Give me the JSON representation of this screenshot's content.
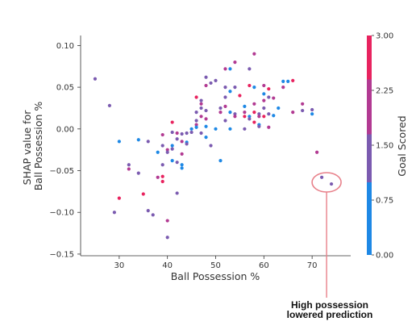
{
  "chart_data": {
    "type": "scatter",
    "xlabel": "Ball Possession %",
    "ylabel_lines": [
      "SHAP value for",
      "Ball Possession %"
    ],
    "xlim": [
      22,
      78
    ],
    "ylim": [
      -0.152,
      0.112
    ],
    "xticks": [
      "30",
      "40",
      "50",
      "60",
      "70"
    ],
    "xtick_values": [
      30,
      40,
      50,
      60,
      70
    ],
    "yticks": [
      "0.10",
      "0.05",
      "0.00",
      "−0.05",
      "−0.10",
      "−0.15"
    ],
    "ytick_values": [
      0.1,
      0.05,
      0.0,
      -0.05,
      -0.1,
      -0.15
    ],
    "grid": false,
    "colorbar": {
      "label": "Goal Scored",
      "min": 0,
      "max": 3,
      "ticks": [
        "3.00",
        "2.25",
        "1.50",
        "0.75",
        "0.00"
      ],
      "tick_values": [
        3.0,
        2.25,
        1.5,
        0.75,
        0.0
      ],
      "colors": [
        "#1e88e5",
        "#7b5bb0",
        "#b23a92",
        "#e8235f"
      ]
    },
    "annotation": {
      "lines": [
        "High possession",
        "lowered prediction"
      ],
      "circle_center": [
        73,
        -0.064
      ],
      "color": "#e8808a"
    },
    "points": [
      [
        25,
        0.06,
        1
      ],
      [
        28,
        0.028,
        1
      ],
      [
        30,
        -0.015,
        0
      ],
      [
        30,
        -0.083,
        3
      ],
      [
        29,
        -0.1,
        1
      ],
      [
        32,
        -0.043,
        1
      ],
      [
        32,
        -0.048,
        2
      ],
      [
        34,
        -0.013,
        0
      ],
      [
        34,
        -0.053,
        1
      ],
      [
        35,
        -0.078,
        3
      ],
      [
        36,
        -0.015,
        1
      ],
      [
        36,
        -0.098,
        1
      ],
      [
        37,
        -0.103,
        1
      ],
      [
        38,
        -0.028,
        0
      ],
      [
        38,
        -0.058,
        2
      ],
      [
        39,
        -0.02,
        1
      ],
      [
        39,
        -0.043,
        1
      ],
      [
        39,
        -0.057,
        3
      ],
      [
        39,
        -0.063,
        3
      ],
      [
        39,
        -0.007,
        2
      ],
      [
        40,
        -0.025,
        2
      ],
      [
        40,
        -0.028,
        1
      ],
      [
        40,
        -0.11,
        2
      ],
      [
        40,
        -0.13,
        1
      ],
      [
        41,
        -0.004,
        1
      ],
      [
        41,
        -0.02,
        0
      ],
      [
        41,
        -0.024,
        1
      ],
      [
        41,
        -0.038,
        0
      ],
      [
        41,
        0.008,
        3
      ],
      [
        42,
        -0.005,
        2
      ],
      [
        42,
        -0.012,
        1
      ],
      [
        42,
        -0.04,
        1
      ],
      [
        42,
        -0.077,
        1
      ],
      [
        43,
        -0.006,
        1
      ],
      [
        43,
        -0.015,
        2
      ],
      [
        43,
        -0.03,
        2
      ],
      [
        43,
        -0.043,
        0
      ],
      [
        43,
        -0.047,
        0
      ],
      [
        44,
        -0.005,
        1
      ],
      [
        44,
        -0.016,
        0
      ],
      [
        44,
        -0.018,
        1
      ],
      [
        45,
        0.0,
        0
      ],
      [
        45,
        -0.004,
        1
      ],
      [
        46,
        0.005,
        2
      ],
      [
        46,
        0.01,
        1
      ],
      [
        46,
        0.002,
        0
      ],
      [
        46,
        0.02,
        1
      ],
      [
        46,
        0.038,
        3
      ],
      [
        47,
        0.03,
        2
      ],
      [
        47,
        0.025,
        1
      ],
      [
        47,
        0.015,
        2
      ],
      [
        47,
        -0.005,
        1
      ],
      [
        47,
        0.034,
        1
      ],
      [
        48,
        0.003,
        0
      ],
      [
        48,
        0.012,
        2
      ],
      [
        48,
        0.022,
        1
      ],
      [
        48,
        0.052,
        2
      ],
      [
        48,
        0.062,
        1
      ],
      [
        48,
        -0.01,
        0
      ],
      [
        49,
        0.055,
        1
      ],
      [
        49,
        -0.02,
        1
      ],
      [
        50,
        0.0,
        0
      ],
      [
        50,
        0.058,
        1
      ],
      [
        51,
        0.025,
        1
      ],
      [
        51,
        0.02,
        2
      ],
      [
        51,
        -0.038,
        0
      ],
      [
        52,
        0.072,
        2
      ],
      [
        52,
        0.05,
        1
      ],
      [
        52,
        0.038,
        1
      ],
      [
        52,
        0.027,
        2
      ],
      [
        52,
        0.01,
        1
      ],
      [
        53,
        0.045,
        0
      ],
      [
        53,
        0.02,
        0
      ],
      [
        53,
        0.072,
        0
      ],
      [
        53,
        0.0,
        0
      ],
      [
        54,
        0.08,
        2
      ],
      [
        54,
        0.05,
        1
      ],
      [
        54,
        0.018,
        1
      ],
      [
        54,
        0.015,
        2
      ],
      [
        55,
        0.04,
        3
      ],
      [
        56,
        0.027,
        0
      ],
      [
        56,
        0.02,
        2
      ],
      [
        56,
        0.015,
        3
      ],
      [
        56,
        0.0,
        1
      ],
      [
        57,
        0.072,
        1
      ],
      [
        57,
        0.052,
        3
      ],
      [
        57,
        0.015,
        0
      ],
      [
        57,
        0.012,
        1
      ],
      [
        58,
        0.09,
        2
      ],
      [
        58,
        0.05,
        0
      ],
      [
        58,
        0.03,
        2
      ],
      [
        58,
        0.02,
        3
      ],
      [
        58,
        0.008,
        3
      ],
      [
        59,
        0.018,
        1
      ],
      [
        59,
        0.015,
        2
      ],
      [
        59,
        0.005,
        0
      ],
      [
        59,
        0.003,
        1
      ],
      [
        60,
        0.052,
        2
      ],
      [
        60,
        0.042,
        0
      ],
      [
        60,
        0.034,
        2
      ],
      [
        60,
        0.025,
        1
      ],
      [
        60,
        0.015,
        3
      ],
      [
        61,
        0.048,
        3
      ],
      [
        61,
        0.038,
        1
      ],
      [
        61,
        0.018,
        1
      ],
      [
        61,
        0.002,
        2
      ],
      [
        62,
        0.037,
        2
      ],
      [
        62,
        0.016,
        0
      ],
      [
        63,
        0.025,
        0
      ],
      [
        64,
        0.057,
        0
      ],
      [
        64,
        0.05,
        2
      ],
      [
        65,
        0.057,
        0
      ],
      [
        66,
        0.058,
        3
      ],
      [
        66,
        0.02,
        2
      ],
      [
        68,
        0.03,
        2
      ],
      [
        68,
        0.022,
        1
      ],
      [
        70,
        0.023,
        1
      ],
      [
        70,
        0.018,
        0
      ],
      [
        71,
        -0.028,
        2
      ],
      [
        72,
        -0.058,
        1
      ],
      [
        74,
        -0.066,
        1
      ]
    ]
  }
}
